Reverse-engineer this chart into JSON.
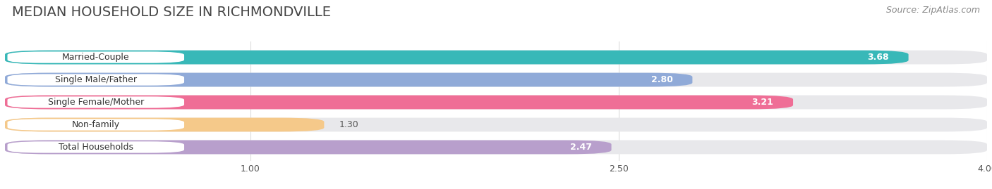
{
  "title": "MEDIAN HOUSEHOLD SIZE IN RICHMONDVILLE",
  "source": "Source: ZipAtlas.com",
  "categories": [
    "Married-Couple",
    "Single Male/Father",
    "Single Female/Mother",
    "Non-family",
    "Total Households"
  ],
  "values": [
    3.68,
    2.8,
    3.21,
    1.3,
    2.47
  ],
  "bar_colors": [
    "#38b8b8",
    "#90aad8",
    "#ef6e96",
    "#f5c98a",
    "#b89fcc"
  ],
  "bg_track_color": "#e8e8eb",
  "label_pill_color": "#ffffff",
  "background_color": "#ffffff",
  "xmin": 0.0,
  "xmax": 4.0,
  "xticks": [
    1.0,
    2.5,
    4.0
  ],
  "title_fontsize": 14,
  "source_fontsize": 9,
  "label_fontsize": 9,
  "value_fontsize": 9,
  "value_color_inside": "#ffffff",
  "value_color_outside": "#555555"
}
